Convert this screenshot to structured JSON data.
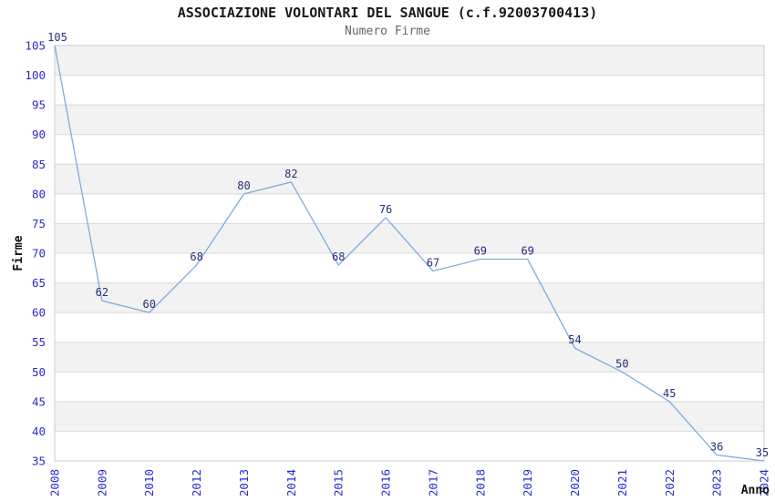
{
  "title": "ASSOCIAZIONE VOLONTARI DEL SANGUE (c.f.92003700413)",
  "subtitle": "Numero Firme",
  "chart_data": {
    "type": "line",
    "title": "ASSOCIAZIONE VOLONTARI DEL SANGUE (c.f.92003700413)",
    "subtitle": "Numero Firme",
    "xlabel": "Anno",
    "ylabel": "Firme",
    "categories": [
      "2008",
      "2009",
      "2010",
      "2012",
      "2013",
      "2014",
      "2015",
      "2016",
      "2017",
      "2018",
      "2019",
      "2020",
      "2021",
      "2022",
      "2023",
      "2024"
    ],
    "values": [
      105,
      62,
      60,
      68,
      80,
      82,
      68,
      76,
      67,
      69,
      69,
      54,
      50,
      45,
      36,
      35
    ],
    "ylim": [
      35,
      105
    ],
    "ytick_step": 5,
    "grid": "horizontal-bands",
    "legend": "none",
    "markers": "none",
    "data_labels": "above-points",
    "colors": {
      "line": "#7fabdf",
      "tick_labels": "#2a2ad2",
      "data_labels": "#2b2b78",
      "band_alt": "#f2f2f2",
      "gridline": "#d9d9d9",
      "plot_border": "#cccccc",
      "title_text": "#1a1a1a",
      "subtitle_text": "#666666",
      "axis_title_text": "#111111",
      "background": "#ffffff"
    }
  }
}
